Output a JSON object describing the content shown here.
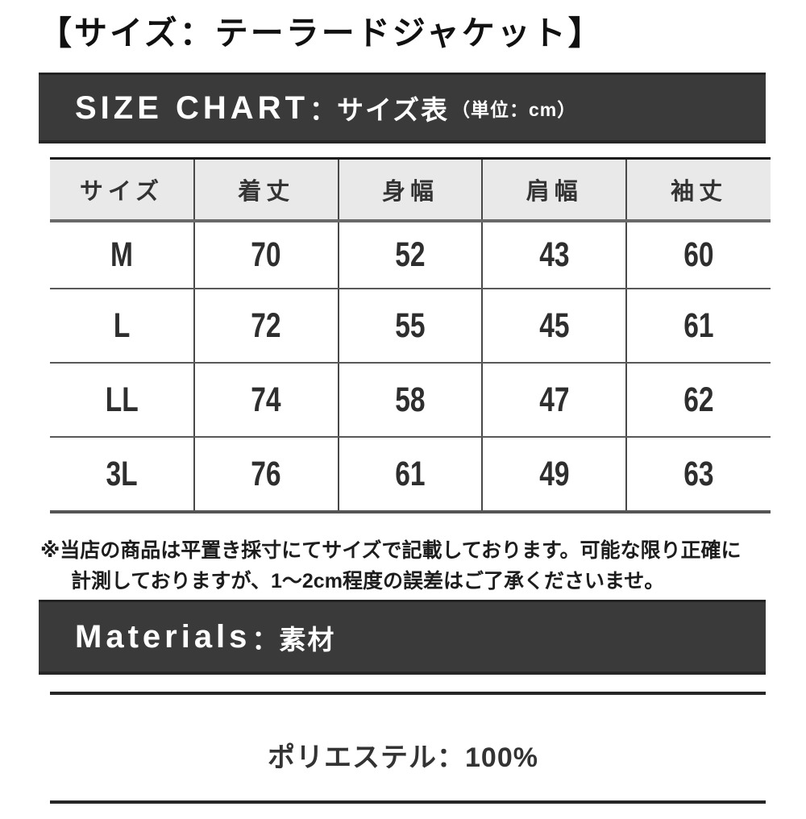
{
  "page": {
    "title": "【サイズ：テーラードジャケット】"
  },
  "size_chart_banner": {
    "heading_en": "SIZE CHART",
    "separator": "：",
    "heading_jp": "サイズ表",
    "unit": "（単位：cm）"
  },
  "table": {
    "columns": [
      "サイズ",
      "着丈",
      "身幅",
      "肩幅",
      "袖丈"
    ],
    "rows": [
      {
        "size": "M",
        "values": [
          "70",
          "52",
          "43",
          "60"
        ]
      },
      {
        "size": "L",
        "values": [
          "72",
          "55",
          "45",
          "61"
        ]
      },
      {
        "size": "LL",
        "values": [
          "74",
          "58",
          "47",
          "62"
        ]
      },
      {
        "size": "3L",
        "values": [
          "76",
          "61",
          "49",
          "63"
        ]
      }
    ]
  },
  "note": {
    "line1": "※当店の商品は平置き採寸にてサイズで記載しております。可能な限り正確に",
    "line2": "計測しておりますが、1〜2cm程度の誤差はご了承くださいませ。"
  },
  "materials": {
    "heading_en": "Materials",
    "separator": "：",
    "heading_jp": "素材",
    "value": "ポリエステル：100%"
  },
  "colors": {
    "banner_bg": "#3a3a3a",
    "banner_text": "#ffffff",
    "table_header_bg": "#e9e9e9",
    "table_border_dark": "#1b1b1b",
    "table_border_gray": "#585858",
    "body_text": "#333333"
  }
}
